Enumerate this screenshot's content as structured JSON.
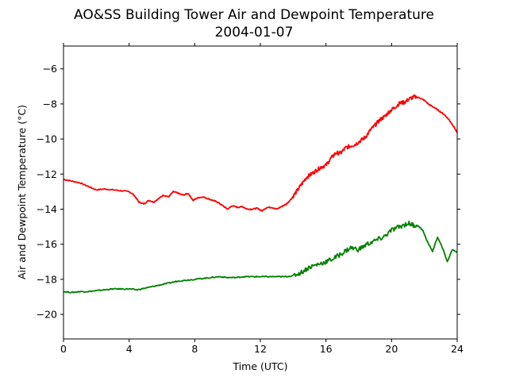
{
  "chart_data": {
    "type": "line",
    "title": "AO&SS Building Tower Air and Dewpoint Temperature",
    "subtitle": "2004-01-07",
    "xlabel": "Time (UTC)",
    "ylabel": "Air and Dewpoint Temperature (°C)",
    "xlim": [
      0,
      24
    ],
    "ylim": [
      -21.4,
      -4.7
    ],
    "xticks": [
      0,
      4,
      8,
      12,
      16,
      20,
      24
    ],
    "yticks": [
      -20,
      -18,
      -16,
      -14,
      -12,
      -10,
      -8,
      -6
    ],
    "grid": false,
    "series": [
      {
        "color": "#ff0000",
        "x": [
          0,
          0.5,
          1,
          1.5,
          2,
          2.5,
          3,
          3.5,
          4,
          4.3,
          4.6,
          4.9,
          5.2,
          5.5,
          5.8,
          6.1,
          6.4,
          6.7,
          7,
          7.3,
          7.6,
          7.9,
          8.2,
          8.5,
          8.8,
          9.1,
          9.4,
          9.7,
          10,
          10.3,
          10.6,
          10.9,
          11.2,
          11.5,
          11.8,
          12.1,
          12.4,
          12.7,
          13,
          13.3,
          13.6,
          13.9,
          14.2,
          14.5,
          14.8,
          15.1,
          15.4,
          15.7,
          16,
          16.3,
          16.6,
          16.9,
          17.2,
          17.5,
          17.8,
          18.1,
          18.4,
          18.7,
          19,
          19.3,
          19.6,
          19.9,
          20.2,
          20.5,
          20.8,
          21.1,
          21.4,
          21.7,
          22,
          22.3,
          22.6,
          22.9,
          23.2,
          23.5,
          23.8,
          24
        ],
        "y": [
          -12.3,
          -12.4,
          -12.5,
          -12.7,
          -12.9,
          -12.85,
          -12.9,
          -12.95,
          -13.0,
          -13.2,
          -13.6,
          -13.7,
          -13.5,
          -13.6,
          -13.4,
          -13.2,
          -13.3,
          -13.0,
          -13.1,
          -13.2,
          -13.1,
          -13.5,
          -13.35,
          -13.3,
          -13.4,
          -13.5,
          -13.6,
          -13.8,
          -14.0,
          -13.8,
          -13.9,
          -13.85,
          -14.0,
          -14.0,
          -13.95,
          -14.1,
          -13.9,
          -13.9,
          -14.0,
          -13.85,
          -13.7,
          -13.4,
          -13.0,
          -12.6,
          -12.2,
          -12.0,
          -11.8,
          -11.6,
          -11.5,
          -11.1,
          -10.8,
          -10.8,
          -10.5,
          -10.4,
          -10.3,
          -10.1,
          -9.9,
          -9.5,
          -9.2,
          -8.9,
          -8.7,
          -8.4,
          -8.2,
          -7.95,
          -7.9,
          -7.7,
          -7.6,
          -7.65,
          -7.8,
          -8.05,
          -8.2,
          -8.4,
          -8.6,
          -8.9,
          -9.3,
          -9.65
        ]
      },
      {
        "color": "#008000",
        "x": [
          0,
          0.5,
          1,
          1.5,
          2,
          2.5,
          3,
          3.5,
          4,
          4.5,
          5,
          5.5,
          6,
          6.5,
          7,
          7.5,
          8,
          8.5,
          9,
          9.5,
          10,
          10.5,
          11,
          11.5,
          12,
          12.5,
          13,
          13.5,
          14,
          14.5,
          15,
          15.5,
          16,
          16.5,
          17,
          17.5,
          18,
          18.5,
          19,
          19.5,
          20,
          20.5,
          21,
          21.3,
          21.6,
          21.9,
          22.2,
          22.5,
          22.8,
          23.1,
          23.4,
          23.7,
          24
        ],
        "y": [
          -18.7,
          -18.75,
          -18.7,
          -18.7,
          -18.65,
          -18.6,
          -18.55,
          -18.55,
          -18.55,
          -18.6,
          -18.5,
          -18.4,
          -18.3,
          -18.2,
          -18.1,
          -18.05,
          -18.0,
          -17.95,
          -17.9,
          -17.85,
          -17.9,
          -17.9,
          -17.85,
          -17.85,
          -17.85,
          -17.85,
          -17.85,
          -17.85,
          -17.8,
          -17.6,
          -17.3,
          -17.15,
          -17.0,
          -16.8,
          -16.5,
          -16.2,
          -16.3,
          -16.0,
          -15.8,
          -15.6,
          -15.2,
          -15.0,
          -14.8,
          -14.9,
          -14.95,
          -15.2,
          -15.9,
          -16.4,
          -15.6,
          -16.2,
          -17.0,
          -16.3,
          -16.45
        ]
      }
    ]
  }
}
